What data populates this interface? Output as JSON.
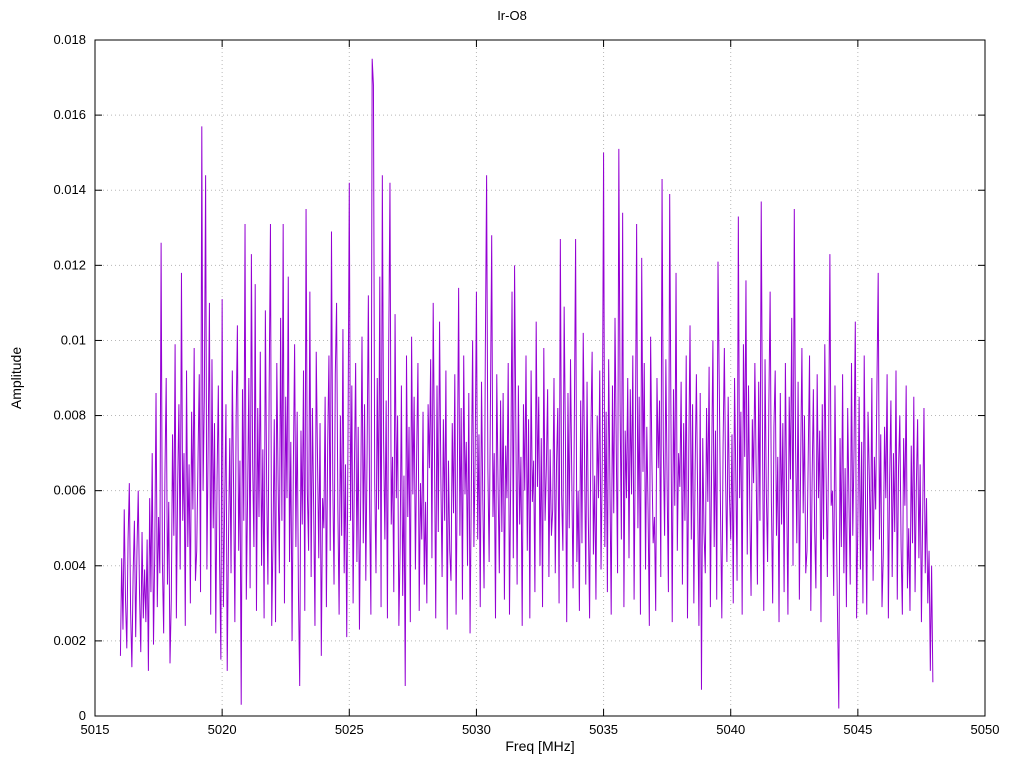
{
  "title": "Ir-O8",
  "chart_data": {
    "type": "line",
    "title": "Ir-O8",
    "xlabel": "Freq [MHz]",
    "ylabel": "Amplitude",
    "xlim": [
      5015,
      5050
    ],
    "ylim": [
      0,
      0.018
    ],
    "x_ticks": [
      5015,
      5020,
      5025,
      5030,
      5035,
      5040,
      5045,
      5050
    ],
    "x_tick_labels": [
      "5015",
      "5020",
      "5025",
      "5030",
      "5035",
      "5040",
      "5045",
      "5050"
    ],
    "y_ticks": [
      0,
      0.002,
      0.004,
      0.006,
      0.008,
      0.01,
      0.012,
      0.014,
      0.016,
      0.018
    ],
    "y_tick_labels": [
      "0",
      "0.002",
      "0.004",
      "0.006",
      "0.008",
      "0.01",
      "0.012",
      "0.014",
      "0.016",
      "0.018"
    ],
    "grid": true,
    "legend": "none",
    "line_color": "#9400D3",
    "x_start": 5016.0,
    "x_step": 0.05,
    "y_scale": 0.0001,
    "values": [
      16,
      42,
      23,
      55,
      31,
      18,
      47,
      62,
      28,
      13,
      38,
      52,
      21,
      44,
      60,
      33,
      17,
      49,
      26,
      39,
      25,
      47,
      12,
      58,
      33,
      70,
      19,
      44,
      86,
      29,
      53,
      38,
      126,
      41,
      22,
      64,
      90,
      35,
      57,
      14,
      31,
      75,
      48,
      99,
      26,
      61,
      83,
      39,
      118,
      52,
      70,
      24,
      92,
      45,
      67,
      30,
      81,
      55,
      98,
      36,
      44,
      68,
      91,
      33,
      157,
      60,
      85,
      144,
      39,
      72,
      110,
      27,
      95,
      50,
      78,
      22,
      63,
      88,
      41,
      15,
      111,
      29,
      56,
      83,
      12,
      47,
      74,
      38,
      92,
      61,
      25,
      79,
      104,
      44,
      68,
      3,
      87,
      52,
      131,
      31,
      58,
      90,
      34,
      123,
      67,
      45,
      115,
      28,
      82,
      53,
      97,
      40,
      71,
      26,
      108,
      62,
      35,
      88,
      131,
      24,
      47,
      79,
      25,
      94,
      63,
      38,
      106,
      52,
      131,
      30,
      85,
      58,
      117,
      41,
      73,
      20,
      66,
      99,
      45,
      81,
      33,
      8,
      76,
      51,
      92,
      28,
      135,
      60,
      44,
      113,
      37,
      82,
      55,
      24,
      97,
      69,
      42,
      78,
      16,
      58,
      50,
      85,
      29,
      72,
      96,
      44,
      129,
      63,
      35,
      91,
      110,
      56,
      27,
      80,
      48,
      103,
      38,
      67,
      21,
      74,
      142,
      52,
      88,
      30,
      65,
      94,
      41,
      77,
      23,
      59,
      101,
      46,
      83,
      36,
      70,
      112,
      55,
      27,
      175,
      168,
      62,
      38,
      90,
      55,
      117,
      29,
      144,
      73,
      47,
      84,
      26,
      98,
      142,
      51,
      69,
      33,
      107,
      58,
      80,
      24,
      45,
      88,
      32,
      64,
      8,
      96,
      53,
      77,
      25,
      101,
      59,
      85,
      39,
      70,
      94,
      28,
      62,
      47,
      81,
      35,
      57,
      30,
      83,
      66,
      95,
      42,
      110,
      71,
      26,
      88,
      49,
      105,
      64,
      37,
      79,
      52,
      92,
      23,
      68,
      44,
      36,
      78,
      54,
      91,
      27,
      65,
      114,
      48,
      82,
      31,
      96,
      59,
      73,
      40,
      86,
      22,
      61,
      100,
      45,
      69,
      113,
      47,
      75,
      29,
      89,
      58,
      34,
      97,
      144,
      66,
      41,
      82,
      128,
      53,
      70,
      26,
      91,
      62,
      38,
      84,
      49,
      86,
      31,
      72,
      58,
      94,
      27,
      65,
      113,
      42,
      120,
      77,
      35,
      88,
      51,
      69,
      24,
      83,
      60,
      96,
      44,
      79,
      26,
      92,
      57,
      68,
      33,
      105,
      61,
      85,
      40,
      74,
      29,
      98,
      52,
      66,
      87,
      37,
      71,
      48,
      55,
      90,
      38,
      67,
      82,
      30,
      127,
      59,
      44,
      109,
      73,
      25,
      86,
      50,
      95,
      63,
      34,
      78,
      127,
      41,
      60,
      28,
      84,
      46,
      102,
      70,
      35,
      89,
      53,
      26,
      75,
      97,
      43,
      64,
      31,
      80,
      58,
      92,
      39,
      68,
      150,
      45,
      81,
      33,
      95,
      62,
      27,
      88,
      54,
      106,
      71,
      38,
      151,
      83,
      47,
      134,
      29,
      76,
      58,
      90,
      42,
      87,
      59,
      96,
      31,
      73,
      131,
      50,
      85,
      27,
      122,
      65,
      94,
      39,
      77,
      55,
      24,
      101,
      68,
      46,
      53,
      28,
      90,
      66,
      84,
      37,
      143,
      72,
      48,
      95,
      61,
      33,
      139,
      79,
      25,
      87,
      56,
      118,
      44,
      70,
      61,
      89,
      35,
      78,
      52,
      96,
      26,
      70,
      104,
      47,
      83,
      30,
      65,
      91,
      58,
      24,
      86,
      7,
      74,
      49,
      38,
      82,
      57,
      93,
      29,
      67,
      100,
      45,
      76,
      31,
      121,
      88,
      54,
      26,
      72,
      98,
      63,
      41,
      85,
      59,
      47,
      75,
      30,
      90,
      64,
      36,
      133,
      58,
      81,
      27,
      99,
      69,
      116,
      43,
      88,
      55,
      32,
      79,
      62,
      94,
      66,
      35,
      89,
      52,
      137,
      74,
      28,
      95,
      60,
      41,
      83,
      113,
      57,
      30,
      77,
      92,
      48,
      69,
      25,
      86,
      51,
      78,
      33,
      94,
      59,
      27,
      85,
      63,
      106,
      40,
      135,
      72,
      46,
      89,
      31,
      67,
      98,
      54,
      80,
      38,
      44,
      70,
      96,
      28,
      62,
      87,
      50,
      34,
      91,
      58,
      76,
      25,
      83,
      47,
      99,
      65,
      37,
      72,
      123,
      56,
      60,
      32,
      88,
      53,
      27,
      2,
      74,
      45,
      91,
      38,
      66,
      29,
      82,
      57,
      35,
      94,
      48,
      71,
      105,
      26,
      52,
      85,
      39,
      73,
      30,
      96,
      58,
      27,
      81,
      64,
      44,
      90,
      36,
      69,
      55,
      88,
      118,
      47,
      75,
      29,
      43,
      77,
      58,
      91,
      26,
      63,
      84,
      37,
      70,
      49,
      92,
      31,
      66,
      80,
      45,
      27,
      74,
      56,
      88,
      34,
      50,
      28,
      72,
      46,
      85,
      33,
      61,
      79,
      42,
      67,
      25,
      54,
      82,
      38,
      58,
      30,
      44,
      12,
      40,
      9
    ]
  }
}
